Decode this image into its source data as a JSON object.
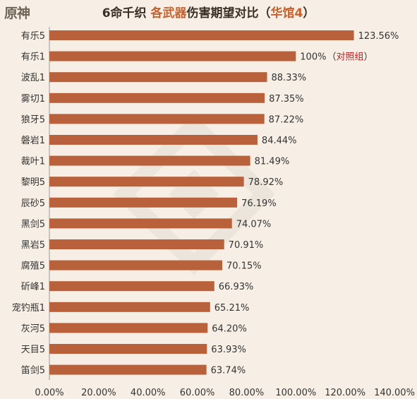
{
  "logo": "原神",
  "title_parts": [
    "6命千织 ",
    "各武器",
    "伤害期望对比（",
    "华馆4",
    "）"
  ],
  "colors": {
    "bar": "#b8613a",
    "title_accent": "#c4622f",
    "reference_note": "#c0181c",
    "background": "#f7efe6"
  },
  "chart_data": {
    "type": "bar",
    "orientation": "horizontal",
    "title": "6命千织 各武器伤害期望对比（华馆4）",
    "categories": [
      "有乐5",
      "有乐1",
      "波乱1",
      "雾切1",
      "狼牙5",
      "磐岩1",
      "裁叶1",
      "黎明5",
      "辰砂5",
      "黑剑5",
      "黑岩5",
      "腐殖5",
      "斫峰1",
      "宠钓瓶1",
      "灰河5",
      "天目5",
      "笛剑5"
    ],
    "values": [
      123.56,
      100,
      88.33,
      87.35,
      87.22,
      84.44,
      81.49,
      78.92,
      76.19,
      74.07,
      70.91,
      70.15,
      66.93,
      65.21,
      64.2,
      63.93,
      63.74
    ],
    "value_labels": [
      "123.56%",
      "100%",
      "88.33%",
      "87.35%",
      "87.22%",
      "84.44%",
      "81.49%",
      "78.92%",
      "76.19%",
      "74.07%",
      "70.91%",
      "70.15%",
      "66.93%",
      "65.21%",
      "64.20%",
      "63.93%",
      "63.74%"
    ],
    "reference_index": 1,
    "reference_note": "（对照组）",
    "xlim": [
      0,
      140
    ],
    "xticks": [
      "0.00%",
      "20.00%",
      "40.00%",
      "60.00%",
      "80.00%",
      "100.00%",
      "120.00%",
      "140.00%"
    ],
    "grid": false,
    "legend": "none"
  }
}
